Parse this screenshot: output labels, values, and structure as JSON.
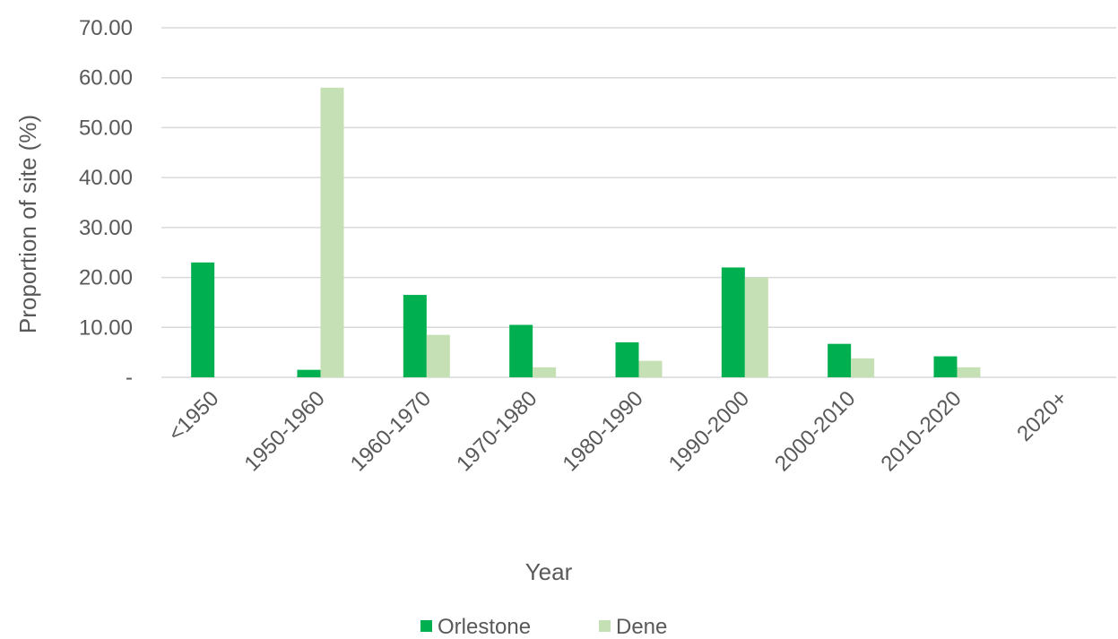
{
  "chart_data": {
    "type": "bar",
    "categories": [
      "<1950",
      "1950-1960",
      "1960-1970",
      "1970-1980",
      "1980-1990",
      "1990-2000",
      "2000-2010",
      "2010-2020",
      "2020+"
    ],
    "series": [
      {
        "name": "Orlestone",
        "values": [
          23.0,
          1.5,
          16.5,
          10.5,
          7.0,
          22.0,
          6.7,
          4.2,
          0
        ],
        "color": "#00b050"
      },
      {
        "name": "Dene",
        "values": [
          0,
          58.0,
          8.5,
          2.0,
          3.3,
          20.0,
          3.8,
          2.0,
          0
        ],
        "color": "#c5e0b4"
      }
    ],
    "xlabel": "Year",
    "ylabel": "Proportion of site (%)",
    "ylim": [
      0,
      70
    ],
    "yticks": [
      0,
      10,
      20,
      30,
      40,
      50,
      60,
      70
    ],
    "ytick_labels": [
      "-",
      "10.00",
      "20.00",
      "30.00",
      "40.00",
      "50.00",
      "60.00",
      "70.00"
    ],
    "grid": true,
    "legend_position": "bottom"
  }
}
